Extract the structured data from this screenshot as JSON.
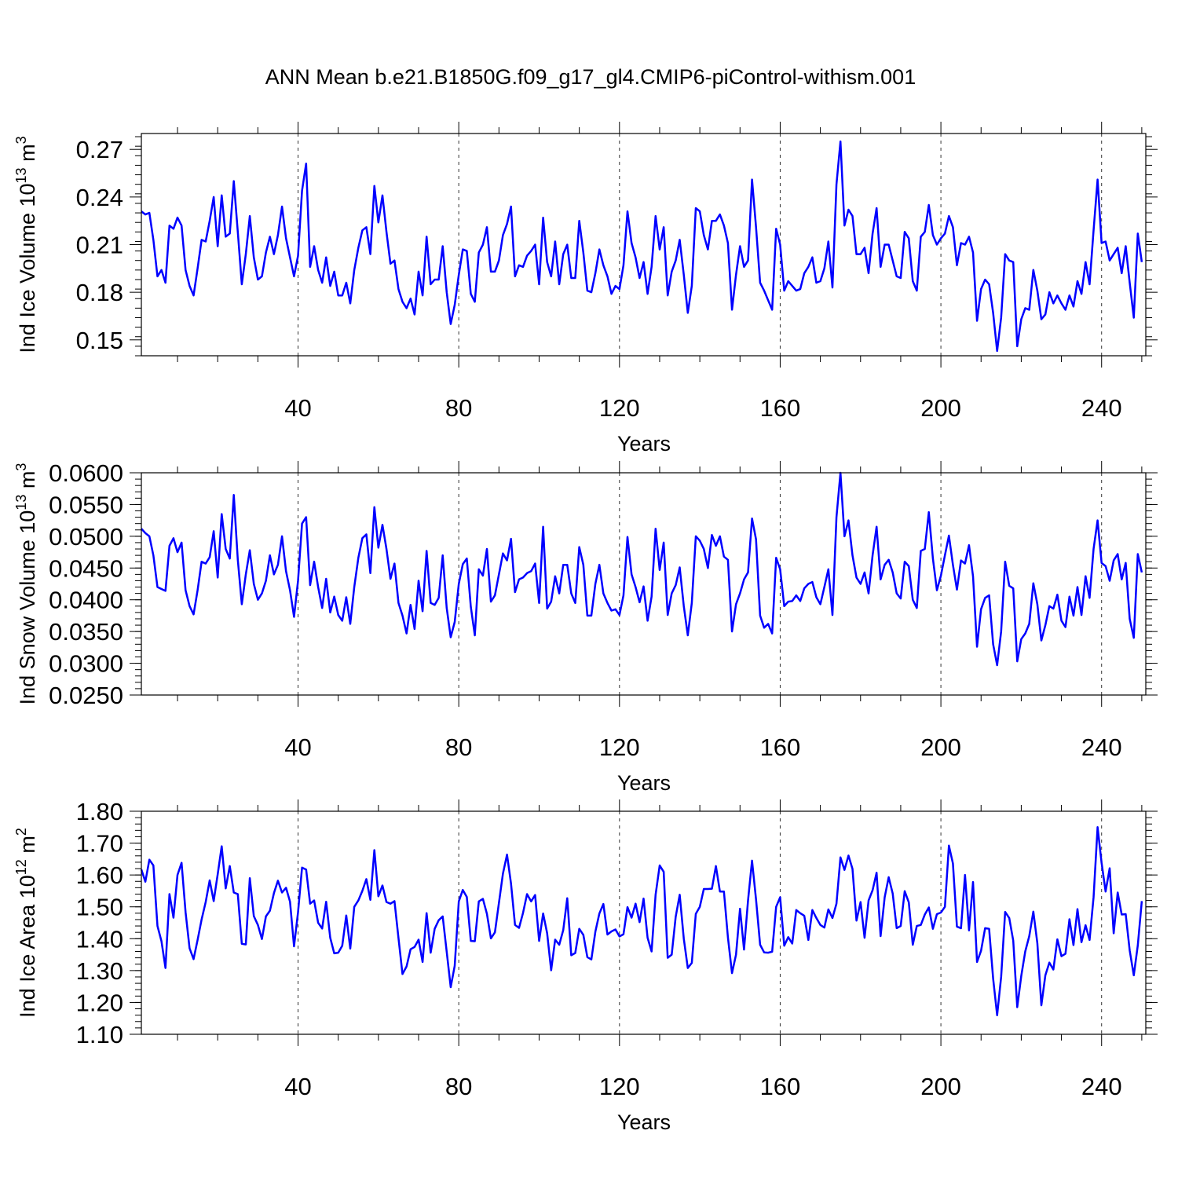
{
  "title": "ANN Mean b.e21.B1850G.f09_g17_gl4.CMIP6-piControl-withism.001",
  "chart_data": [
    {
      "type": "line",
      "title": "ANN Mean b.e21.B1850G.f09_g17_gl4.CMIP6-piControl-withism.001",
      "ylabel": "Ind Ice Volume",
      "ylabel_exp": "13",
      "ylabel_unit": "m",
      "ylabel_unit_exp": "3",
      "ylabel_mid": " 10",
      "xlabel": "Years",
      "xlim": [
        1,
        251
      ],
      "ylim": [
        0.14,
        0.28
      ],
      "xticks": [
        40,
        80,
        120,
        160,
        200,
        240
      ],
      "xtick_labels": [
        "40",
        "80",
        "120",
        "160",
        "200",
        "240"
      ],
      "yticks": [
        0.15,
        0.18,
        0.21,
        0.24,
        0.27
      ],
      "ytick_labels": [
        "0.15",
        "0.18",
        "0.21",
        "0.24",
        "0.27"
      ],
      "grid": "dashed vertical at major x ticks",
      "series": [
        {
          "name": "Ind Ice Volume",
          "color": "#0000ff",
          "values": [
            0.231,
            0.229,
            0.23,
            0.213,
            0.19,
            0.194,
            0.186,
            0.222,
            0.22,
            0.227,
            0.222,
            0.194,
            0.184,
            0.178,
            0.195,
            0.213,
            0.212,
            0.225,
            0.24,
            0.209,
            0.241,
            0.215,
            0.217,
            0.25,
            0.218,
            0.185,
            0.204,
            0.228,
            0.202,
            0.188,
            0.19,
            0.205,
            0.215,
            0.204,
            0.216,
            0.234,
            0.214,
            0.202,
            0.19,
            0.203,
            0.244,
            0.261,
            0.196,
            0.209,
            0.194,
            0.186,
            0.202,
            0.184,
            0.193,
            0.178,
            0.178,
            0.186,
            0.173,
            0.194,
            0.208,
            0.219,
            0.221,
            0.204,
            0.247,
            0.224,
            0.241,
            0.218,
            0.198,
            0.2,
            0.182,
            0.174,
            0.17,
            0.176,
            0.166,
            0.193,
            0.178,
            0.215,
            0.185,
            0.188,
            0.188,
            0.209,
            0.18,
            0.16,
            0.172,
            0.191,
            0.207,
            0.206,
            0.179,
            0.174,
            0.205,
            0.21,
            0.221,
            0.193,
            0.193,
            0.2,
            0.216,
            0.223,
            0.234,
            0.19,
            0.197,
            0.196,
            0.203,
            0.206,
            0.21,
            0.185,
            0.227,
            0.199,
            0.19,
            0.212,
            0.185,
            0.204,
            0.21,
            0.189,
            0.189,
            0.225,
            0.205,
            0.181,
            0.18,
            0.192,
            0.207,
            0.197,
            0.19,
            0.179,
            0.184,
            0.182,
            0.197,
            0.231,
            0.211,
            0.202,
            0.189,
            0.199,
            0.179,
            0.196,
            0.228,
            0.207,
            0.221,
            0.178,
            0.193,
            0.2,
            0.213,
            0.191,
            0.167,
            0.184,
            0.233,
            0.231,
            0.216,
            0.207,
            0.225,
            0.225,
            0.229,
            0.222,
            0.211,
            0.169,
            0.191,
            0.209,
            0.196,
            0.2,
            0.251,
            0.221,
            0.186,
            0.181,
            0.175,
            0.169,
            0.22,
            0.21,
            0.181,
            0.187,
            0.184,
            0.181,
            0.182,
            0.192,
            0.196,
            0.202,
            0.186,
            0.187,
            0.195,
            0.212,
            0.183,
            0.248,
            0.275,
            0.222,
            0.232,
            0.228,
            0.204,
            0.204,
            0.208,
            0.192,
            0.217,
            0.233,
            0.196,
            0.21,
            0.21,
            0.2,
            0.19,
            0.189,
            0.218,
            0.214,
            0.187,
            0.181,
            0.215,
            0.218,
            0.235,
            0.216,
            0.21,
            0.214,
            0.217,
            0.228,
            0.221,
            0.197,
            0.211,
            0.21,
            0.215,
            0.205,
            0.162,
            0.182,
            0.188,
            0.185,
            0.167,
            0.143,
            0.164,
            0.204,
            0.2,
            0.199,
            0.146,
            0.163,
            0.17,
            0.169,
            0.194,
            0.181,
            0.163,
            0.166,
            0.18,
            0.173,
            0.178,
            0.173,
            0.169,
            0.178,
            0.171,
            0.187,
            0.179,
            0.199,
            0.185,
            0.219,
            0.251,
            0.211,
            0.212,
            0.2,
            0.204,
            0.208,
            0.192,
            0.209,
            0.186,
            0.164,
            0.217,
            0.199
          ]
        }
      ]
    },
    {
      "type": "line",
      "ylabel": "Ind Snow Volume",
      "ylabel_exp": "13",
      "ylabel_unit": "m",
      "ylabel_unit_exp": "3",
      "ylabel_mid": " 10",
      "xlabel": "Years",
      "xlim": [
        1,
        251
      ],
      "ylim": [
        0.025,
        0.06
      ],
      "xticks": [
        40,
        80,
        120,
        160,
        200,
        240
      ],
      "xtick_labels": [
        "40",
        "80",
        "120",
        "160",
        "200",
        "240"
      ],
      "yticks": [
        0.025,
        0.03,
        0.035,
        0.04,
        0.045,
        0.05,
        0.055,
        0.06
      ],
      "ytick_labels": [
        "0.0250",
        "0.0300",
        "0.0350",
        "0.0400",
        "0.0450",
        "0.0500",
        "0.0550",
        "0.0600"
      ],
      "grid": "dashed vertical at major x ticks",
      "series": [
        {
          "name": "Ind Snow Volume",
          "color": "#0000ff",
          "values": [
            0.0512,
            0.0505,
            0.05,
            0.047,
            0.042,
            0.0417,
            0.0414,
            0.0485,
            0.0497,
            0.0475,
            0.049,
            0.0415,
            0.039,
            0.0377,
            0.0415,
            0.046,
            0.0457,
            0.0467,
            0.0508,
            0.0435,
            0.0535,
            0.048,
            0.0465,
            0.0565,
            0.0463,
            0.0393,
            0.044,
            0.0478,
            0.0425,
            0.04,
            0.041,
            0.043,
            0.047,
            0.044,
            0.0455,
            0.05,
            0.0445,
            0.0415,
            0.0373,
            0.043,
            0.052,
            0.053,
            0.0423,
            0.046,
            0.042,
            0.0387,
            0.0433,
            0.038,
            0.0405,
            0.0376,
            0.0367,
            0.0404,
            0.0362,
            0.042,
            0.0466,
            0.0497,
            0.0503,
            0.0442,
            0.0546,
            0.0482,
            0.0518,
            0.048,
            0.0433,
            0.0457,
            0.0395,
            0.0375,
            0.0347,
            0.0392,
            0.0354,
            0.043,
            0.0382,
            0.0477,
            0.0395,
            0.0392,
            0.0403,
            0.047,
            0.0387,
            0.0341,
            0.0365,
            0.0425,
            0.0456,
            0.0465,
            0.0389,
            0.0344,
            0.0448,
            0.0438,
            0.048,
            0.0397,
            0.0407,
            0.044,
            0.0473,
            0.0462,
            0.0496,
            0.0412,
            0.0432,
            0.0435,
            0.0442,
            0.0445,
            0.0457,
            0.0395,
            0.0515,
            0.0386,
            0.0397,
            0.0437,
            0.041,
            0.0455,
            0.0455,
            0.041,
            0.0395,
            0.0483,
            0.0455,
            0.0375,
            0.0375,
            0.0425,
            0.0455,
            0.041,
            0.0395,
            0.0383,
            0.0385,
            0.0376,
            0.0407,
            0.0499,
            0.044,
            0.042,
            0.0396,
            0.0421,
            0.0367,
            0.0405,
            0.0512,
            0.0447,
            0.049,
            0.0376,
            0.041,
            0.0423,
            0.0451,
            0.039,
            0.0344,
            0.0395,
            0.05,
            0.0493,
            0.048,
            0.045,
            0.0502,
            0.0485,
            0.05,
            0.0468,
            0.0463,
            0.035,
            0.0393,
            0.041,
            0.0432,
            0.0443,
            0.0528,
            0.0495,
            0.0375,
            0.0356,
            0.0362,
            0.0347,
            0.0466,
            0.0448,
            0.039,
            0.0397,
            0.0398,
            0.0407,
            0.0398,
            0.0418,
            0.0425,
            0.0428,
            0.0404,
            0.0393,
            0.042,
            0.0448,
            0.0376,
            0.053,
            0.06,
            0.05,
            0.0525,
            0.047,
            0.0435,
            0.0425,
            0.0443,
            0.041,
            0.047,
            0.0515,
            0.0432,
            0.0455,
            0.0463,
            0.0443,
            0.041,
            0.0402,
            0.046,
            0.0453,
            0.04,
            0.0387,
            0.0477,
            0.048,
            0.0538,
            0.0465,
            0.0415,
            0.0438,
            0.047,
            0.0501,
            0.0455,
            0.0416,
            0.0462,
            0.0457,
            0.0486,
            0.0437,
            0.0326,
            0.0385,
            0.0403,
            0.0407,
            0.033,
            0.0297,
            0.035,
            0.046,
            0.0422,
            0.0418,
            0.0303,
            0.0338,
            0.0347,
            0.0362,
            0.0426,
            0.0393,
            0.0336,
            0.036,
            0.039,
            0.0386,
            0.0408,
            0.0367,
            0.0357,
            0.0405,
            0.0375,
            0.042,
            0.0376,
            0.0437,
            0.0403,
            0.048,
            0.0525,
            0.0458,
            0.0453,
            0.043,
            0.0462,
            0.0472,
            0.0432,
            0.0458,
            0.037,
            0.034,
            0.0472,
            0.0443
          ]
        }
      ]
    },
    {
      "type": "line",
      "ylabel": "Ind Ice Area",
      "ylabel_exp": "12",
      "ylabel_unit": "m",
      "ylabel_unit_exp": "2",
      "ylabel_mid": " 10",
      "xlabel": "Years",
      "xlim": [
        1,
        251
      ],
      "ylim": [
        1.1,
        1.8
      ],
      "xticks": [
        40,
        80,
        120,
        160,
        200,
        240
      ],
      "xtick_labels": [
        "40",
        "80",
        "120",
        "160",
        "200",
        "240"
      ],
      "yticks": [
        1.1,
        1.2,
        1.3,
        1.4,
        1.5,
        1.6,
        1.7,
        1.8
      ],
      "ytick_labels": [
        "1.10",
        "1.20",
        "1.30",
        "1.40",
        "1.50",
        "1.60",
        "1.70",
        "1.80"
      ],
      "grid": "dashed vertical at major x ticks",
      "series": [
        {
          "name": "Ind Ice Area",
          "color": "#0000ff",
          "values": [
            1.617,
            1.579,
            1.648,
            1.63,
            1.44,
            1.392,
            1.308,
            1.54,
            1.466,
            1.6,
            1.638,
            1.483,
            1.37,
            1.336,
            1.396,
            1.46,
            1.515,
            1.583,
            1.518,
            1.602,
            1.69,
            1.558,
            1.628,
            1.545,
            1.54,
            1.384,
            1.382,
            1.59,
            1.471,
            1.443,
            1.399,
            1.47,
            1.488,
            1.543,
            1.582,
            1.545,
            1.56,
            1.516,
            1.376,
            1.483,
            1.623,
            1.617,
            1.51,
            1.52,
            1.45,
            1.432,
            1.516,
            1.403,
            1.354,
            1.356,
            1.378,
            1.473,
            1.369,
            1.5,
            1.52,
            1.55,
            1.587,
            1.522,
            1.678,
            1.533,
            1.567,
            1.515,
            1.51,
            1.518,
            1.402,
            1.289,
            1.313,
            1.367,
            1.374,
            1.397,
            1.327,
            1.48,
            1.356,
            1.431,
            1.458,
            1.47,
            1.359,
            1.248,
            1.315,
            1.517,
            1.553,
            1.531,
            1.393,
            1.392,
            1.517,
            1.525,
            1.478,
            1.401,
            1.42,
            1.512,
            1.604,
            1.664,
            1.573,
            1.443,
            1.434,
            1.481,
            1.54,
            1.517,
            1.537,
            1.393,
            1.479,
            1.417,
            1.301,
            1.397,
            1.381,
            1.427,
            1.527,
            1.348,
            1.355,
            1.431,
            1.412,
            1.342,
            1.335,
            1.422,
            1.479,
            1.509,
            1.413,
            1.423,
            1.429,
            1.407,
            1.414,
            1.499,
            1.466,
            1.51,
            1.452,
            1.526,
            1.403,
            1.36,
            1.538,
            1.63,
            1.61,
            1.34,
            1.35,
            1.469,
            1.538,
            1.4,
            1.308,
            1.324,
            1.478,
            1.5,
            1.556,
            1.556,
            1.557,
            1.628,
            1.548,
            1.548,
            1.404,
            1.292,
            1.35,
            1.494,
            1.366,
            1.52,
            1.645,
            1.523,
            1.381,
            1.357,
            1.356,
            1.359,
            1.5,
            1.53,
            1.378,
            1.405,
            1.385,
            1.49,
            1.48,
            1.472,
            1.396,
            1.49,
            1.465,
            1.443,
            1.435,
            1.492,
            1.465,
            1.51,
            1.655,
            1.616,
            1.661,
            1.619,
            1.457,
            1.515,
            1.403,
            1.52,
            1.552,
            1.607,
            1.408,
            1.53,
            1.593,
            1.542,
            1.433,
            1.44,
            1.549,
            1.514,
            1.381,
            1.44,
            1.443,
            1.476,
            1.498,
            1.431,
            1.477,
            1.482,
            1.5,
            1.692,
            1.636,
            1.438,
            1.433,
            1.6,
            1.426,
            1.578,
            1.327,
            1.362,
            1.433,
            1.431,
            1.275,
            1.16,
            1.28,
            1.484,
            1.465,
            1.394,
            1.185,
            1.283,
            1.36,
            1.408,
            1.485,
            1.386,
            1.191,
            1.285,
            1.325,
            1.303,
            1.398,
            1.345,
            1.353,
            1.461,
            1.38,
            1.493,
            1.389,
            1.442,
            1.396,
            1.53,
            1.75,
            1.638,
            1.548,
            1.621,
            1.417,
            1.545,
            1.476,
            1.477,
            1.363,
            1.285,
            1.379,
            1.518
          ]
        }
      ]
    }
  ]
}
